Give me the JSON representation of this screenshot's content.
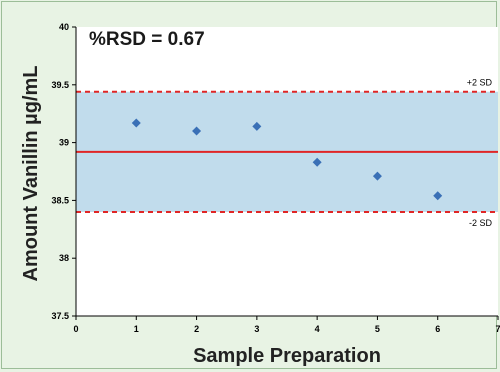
{
  "chart_data": {
    "type": "scatter",
    "xlabel": "Sample Preparation",
    "ylabel": "Amount Vanillin µg/mL",
    "xlim": [
      0,
      7
    ],
    "ylim": [
      37.5,
      40
    ],
    "x_ticks": [
      "0",
      "1",
      "2",
      "3",
      "4",
      "5",
      "6",
      "7"
    ],
    "y_ticks": [
      "37.5",
      "38",
      "38.5",
      "39",
      "39.5",
      "40"
    ],
    "annotation": "%RSD = 0.67",
    "series": [
      {
        "x": [
          1,
          2,
          3,
          4,
          5,
          6
        ],
        "y": [
          39.17,
          39.1,
          39.14,
          38.83,
          38.71,
          38.54
        ]
      }
    ],
    "mean": 38.92,
    "upper_limit": {
      "value": 39.44,
      "label": "+2 SD"
    },
    "lower_limit": {
      "value": 38.4,
      "label": "-2 SD"
    },
    "grid": false,
    "colors": {
      "background": "#e8f3e4",
      "plot_area": "#ffffff",
      "band": "#c1dcec",
      "point": "#3a70b6",
      "mean_line": "#e02626",
      "limit_line": "#e02626"
    }
  }
}
